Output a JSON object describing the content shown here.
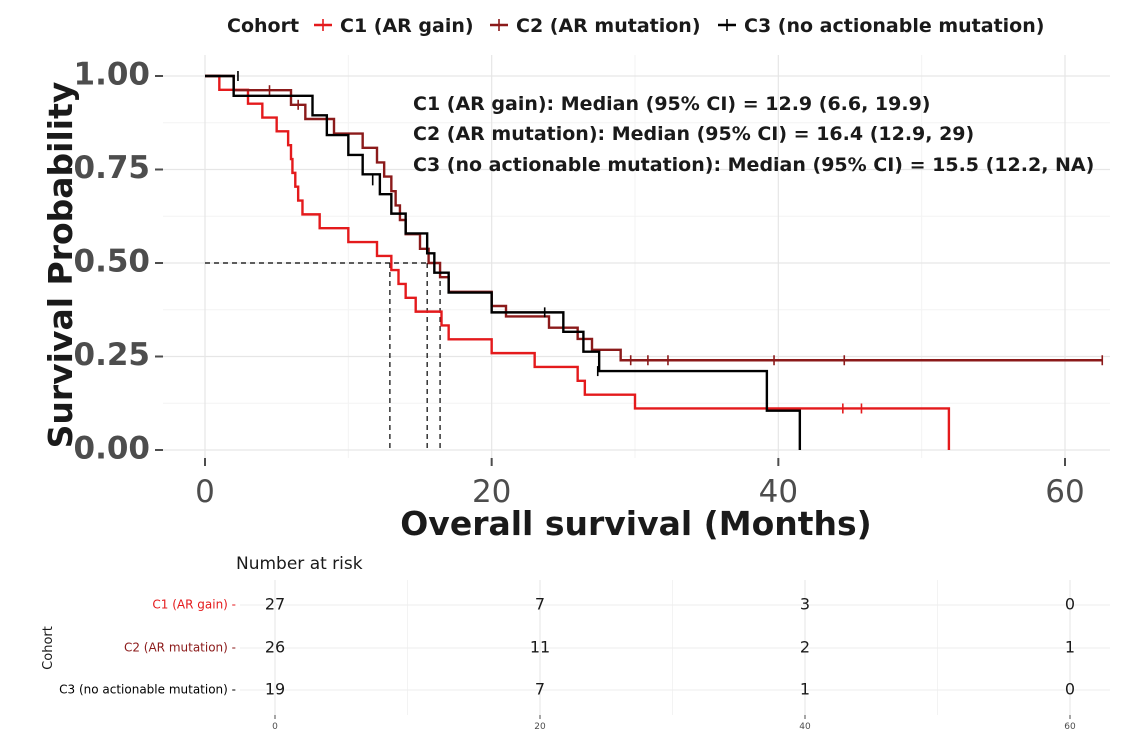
{
  "chart_data": {
    "type": "line",
    "subtype": "kaplan-meier",
    "title": "",
    "xlabel": "Overall survival (Months)",
    "ylabel": "Survival Probability",
    "xlim": [
      0,
      63
    ],
    "ylim": [
      0,
      1
    ],
    "x_ticks": [
      "0",
      "20",
      "40",
      "60"
    ],
    "y_ticks": [
      "0.00",
      "0.25",
      "0.50",
      "0.75",
      "1.00"
    ],
    "grid": true,
    "legend": {
      "title": "Cohort",
      "position": "top"
    },
    "series": [
      {
        "name": "C1 (AR gain)",
        "color": "#e41a1c",
        "steps": [
          [
            0,
            1
          ],
          [
            1,
            0.963
          ],
          [
            3,
            0.926
          ],
          [
            4,
            0.889
          ],
          [
            5,
            0.852
          ],
          [
            5.8,
            0.815
          ],
          [
            6,
            0.778
          ],
          [
            6.1,
            0.741
          ],
          [
            6.3,
            0.704
          ],
          [
            6.5,
            0.667
          ],
          [
            6.8,
            0.63
          ],
          [
            8,
            0.593
          ],
          [
            10,
            0.556
          ],
          [
            12,
            0.519
          ],
          [
            13,
            0.481
          ],
          [
            13.5,
            0.444
          ],
          [
            14,
            0.407
          ],
          [
            14.7,
            0.37
          ],
          [
            16.5,
            0.333
          ],
          [
            17,
            0.296
          ],
          [
            20,
            0.259
          ],
          [
            23,
            0.222
          ],
          [
            26,
            0.185
          ],
          [
            26.5,
            0.148
          ],
          [
            30,
            0.111
          ],
          [
            51.9,
            0
          ]
        ],
        "censors": [
          [
            44.5,
            0.111
          ],
          [
            45.8,
            0.111
          ]
        ]
      },
      {
        "name": "C2 (AR mutation)",
        "color": "#8b1a1a",
        "steps": [
          [
            0,
            1
          ],
          [
            2,
            0.962
          ],
          [
            6,
            0.923
          ],
          [
            7,
            0.885
          ],
          [
            9,
            0.846
          ],
          [
            11,
            0.808
          ],
          [
            12,
            0.769
          ],
          [
            12.5,
            0.731
          ],
          [
            13,
            0.692
          ],
          [
            13.3,
            0.654
          ],
          [
            13.6,
            0.615
          ],
          [
            14,
            0.577
          ],
          [
            15,
            0.538
          ],
          [
            15.6,
            0.5
          ],
          [
            16.4,
            0.462
          ],
          [
            17,
            0.423
          ],
          [
            20,
            0.385
          ],
          [
            21,
            0.357
          ],
          [
            24,
            0.327
          ],
          [
            26,
            0.297
          ],
          [
            27,
            0.268
          ],
          [
            29,
            0.24
          ]
        ],
        "censors": [
          [
            4.5,
            0.962
          ],
          [
            6.5,
            0.923
          ],
          [
            29.7,
            0.24
          ],
          [
            30.9,
            0.24
          ],
          [
            32.3,
            0.24
          ],
          [
            39.7,
            0.24
          ],
          [
            44.6,
            0.24
          ],
          [
            62.6,
            0.24
          ]
        ]
      },
      {
        "name": "C3 (no actionable mutation)",
        "color": "#000000",
        "steps": [
          [
            0,
            1
          ],
          [
            2,
            0.947
          ],
          [
            3.5,
            0.947
          ],
          [
            5,
            0.947
          ],
          [
            7.5,
            0.895
          ],
          [
            8.5,
            0.842
          ],
          [
            10,
            0.789
          ],
          [
            11,
            0.737
          ],
          [
            12.2,
            0.684
          ],
          [
            13,
            0.632
          ],
          [
            14,
            0.579
          ],
          [
            15.5,
            0.526
          ],
          [
            16,
            0.474
          ],
          [
            17,
            0.421
          ],
          [
            20,
            0.368
          ],
          [
            25,
            0.316
          ],
          [
            26.4,
            0.263
          ],
          [
            27.5,
            0.211
          ],
          [
            39.2,
            0.105
          ],
          [
            41.5,
            0
          ]
        ],
        "censors": [
          [
            2.3,
            1
          ],
          [
            11.7,
            0.721
          ],
          [
            23.7,
            0.368
          ],
          [
            27.4,
            0.211
          ]
        ]
      }
    ],
    "medians": [
      12.9,
      16.4,
      15.5
    ],
    "annotations": [
      "C1 (AR gain): Median (95% CI) = 12.9 (6.6, 19.9)",
      "C2 (AR mutation): Median (95% CI) = 16.4 (12.9, 29)",
      "C3 (no actionable mutation): Median (95% CI) = 15.5 (12.2, NA)"
    ],
    "risk_table": {
      "title": "Number at risk",
      "y_title": "Cohort",
      "times": [
        "0",
        "20",
        "40",
        "60"
      ],
      "rows": [
        {
          "label": "C1 (AR gain)",
          "values": [
            "27",
            "7",
            "3",
            "0"
          ]
        },
        {
          "label": "C2 (AR mutation)",
          "values": [
            "26",
            "11",
            "2",
            "1"
          ]
        },
        {
          "label": "C3 (no actionable mutation)",
          "values": [
            "19",
            "7",
            "1",
            "0"
          ]
        }
      ]
    }
  }
}
